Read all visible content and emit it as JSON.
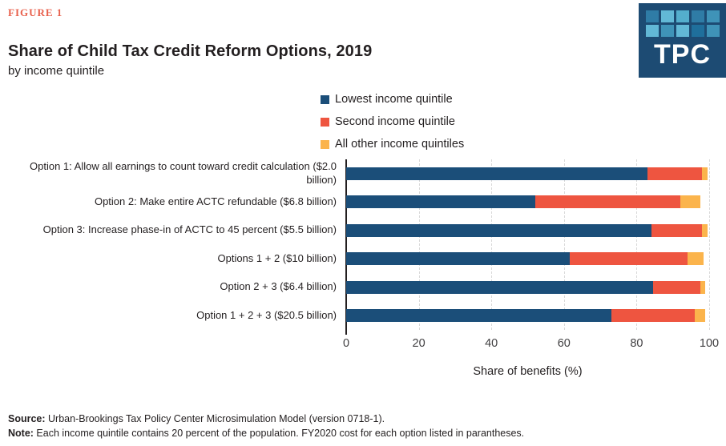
{
  "header": {
    "figure_label": "FIGURE 1",
    "title": "Share of Child Tax Credit Reform Options, 2019",
    "subtitle": "by income quintile"
  },
  "logo": {
    "text": "TPC",
    "background": "#1d4b73",
    "square_colors": [
      "#2f7ca6",
      "#62b8d6",
      "#54aecd",
      "#2f7ca6",
      "#3f93b8",
      "#62b8d6",
      "#3f93b8",
      "#62b8d6",
      "#1f6f9c",
      "#3f93b8"
    ]
  },
  "legend": [
    {
      "label": "Lowest income quintile",
      "color": "#1b4e79"
    },
    {
      "label": "Second income quintile",
      "color": "#ee5540"
    },
    {
      "label": "All other income quintiles",
      "color": "#fbb44c"
    }
  ],
  "chart_data": {
    "type": "bar",
    "orientation": "horizontal",
    "stacked": true,
    "title": "Share of Child Tax Credit Reform Options, 2019",
    "subtitle": "by income quintile",
    "categories": [
      "Option 1: Allow all earnings to count toward credit calculation ($2.0 billion)",
      "Option 2: Make entire ACTC refundable ($6.8 billion)",
      "Option 3: Increase phase-in of ACTC to 45 percent ($5.5 billion)",
      "Options 1 + 2 ($10 billion)",
      "Option 2 + 3 ($6.4 billion)",
      "Option 1 + 2 + 3 ($20.5 billion)"
    ],
    "series": [
      {
        "name": "Lowest income quintile",
        "color": "#1b4e79",
        "values": [
          83,
          52,
          84,
          61.5,
          84.5,
          73
        ]
      },
      {
        "name": "Second income quintile",
        "color": "#ee5540",
        "values": [
          15,
          40,
          14,
          32.5,
          13,
          23
        ]
      },
      {
        "name": "All other income quintiles",
        "color": "#fbb44c",
        "values": [
          1.5,
          5.5,
          1.5,
          4.5,
          1.5,
          3
        ]
      }
    ],
    "xlabel": "Share of benefits (%)",
    "ylabel": "",
    "x_ticks": [
      0,
      20,
      40,
      60,
      80,
      100
    ],
    "xlim": [
      0,
      100
    ],
    "grid": "vertical dashed",
    "legend_position": "top"
  },
  "footer": {
    "source_label": "Source:",
    "source_text": " Urban-Brookings Tax Policy Center Microsimulation Model (version 0718-1).",
    "note_label": "Note:",
    "note_text": " Each income quintile contains 20 percent of the population. FY2020 cost for each option listed in parantheses."
  }
}
